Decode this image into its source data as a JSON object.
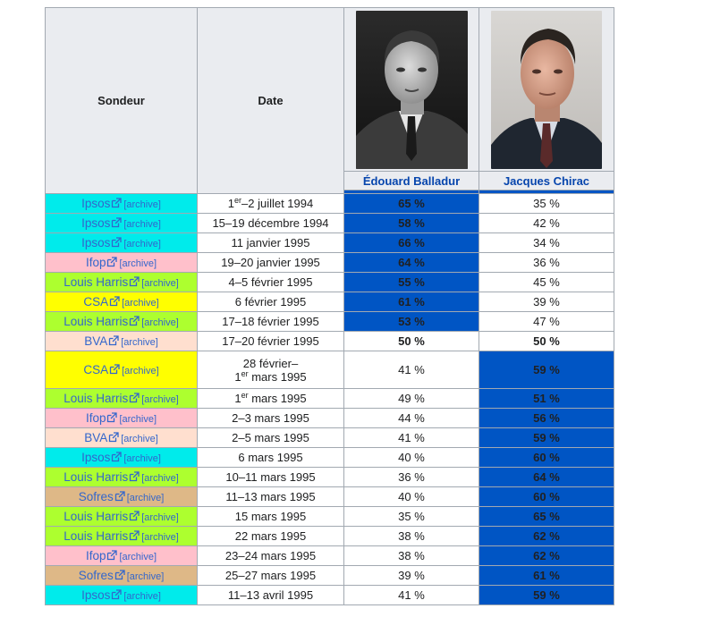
{
  "headers": {
    "pollster": "Sondeur",
    "date": "Date",
    "candidates": [
      {
        "name": "Édouard Balladur",
        "photo_icon": "balladur-portrait",
        "color": "#0055c4"
      },
      {
        "name": "Jacques Chirac",
        "photo_icon": "chirac-portrait",
        "color": "#0055c4"
      }
    ]
  },
  "archive_label": "[archive]",
  "colors": {
    "lead": "#0055c4",
    "Ipsos": "#00ebeb",
    "Ifop": "#ffc0cb",
    "Louis Harris": "#adff2f",
    "CSA": "#ffff00",
    "BVA": "#ffdfcf",
    "Sofres": "#deb887"
  },
  "rows": [
    {
      "pollster": "Ipsos",
      "date_pre": "1",
      "date_sup": "er",
      "date_post": "–2 juillet 1994",
      "date_line2": "",
      "balladur": "65 %",
      "chirac": "35 %",
      "leader": "balladur"
    },
    {
      "pollster": "Ipsos",
      "date_pre": "15–19 décembre 1994",
      "date_sup": "",
      "date_post": "",
      "date_line2": "",
      "balladur": "58 %",
      "chirac": "42 %",
      "leader": "balladur"
    },
    {
      "pollster": "Ipsos",
      "date_pre": "11 janvier 1995",
      "date_sup": "",
      "date_post": "",
      "date_line2": "",
      "balladur": "66 %",
      "chirac": "34 %",
      "leader": "balladur"
    },
    {
      "pollster": "Ifop",
      "date_pre": "19–20 janvier 1995",
      "date_sup": "",
      "date_post": "",
      "date_line2": "",
      "balladur": "64 %",
      "chirac": "36 %",
      "leader": "balladur"
    },
    {
      "pollster": "Louis Harris",
      "date_pre": "4–5 février 1995",
      "date_sup": "",
      "date_post": "",
      "date_line2": "",
      "balladur": "55 %",
      "chirac": "45 %",
      "leader": "balladur"
    },
    {
      "pollster": "CSA",
      "date_pre": "6 février 1995",
      "date_sup": "",
      "date_post": "",
      "date_line2": "",
      "balladur": "61 %",
      "chirac": "39 %",
      "leader": "balladur"
    },
    {
      "pollster": "Louis Harris",
      "date_pre": "17–18 février 1995",
      "date_sup": "",
      "date_post": "",
      "date_line2": "",
      "balladur": "53 %",
      "chirac": "47 %",
      "leader": "balladur"
    },
    {
      "pollster": "BVA",
      "date_pre": "17–20 février 1995",
      "date_sup": "",
      "date_post": "",
      "date_line2": "",
      "balladur": "50 %",
      "chirac": "50 %",
      "leader": "tie"
    },
    {
      "pollster": "CSA",
      "date_pre": "28 février–",
      "date_sup": "",
      "date_post": "",
      "date_line2": "mars 1995",
      "date_line2_pre": "1",
      "date_line2_sup": "er",
      "balladur": "41 %",
      "chirac": "59 %",
      "leader": "chirac"
    },
    {
      "pollster": "Louis Harris",
      "date_pre": "1",
      "date_sup": "er",
      "date_post": " mars 1995",
      "date_line2": "",
      "balladur": "49 %",
      "chirac": "51 %",
      "leader": "chirac"
    },
    {
      "pollster": "Ifop",
      "date_pre": "2–3 mars 1995",
      "date_sup": "",
      "date_post": "",
      "date_line2": "",
      "balladur": "44 %",
      "chirac": "56 %",
      "leader": "chirac"
    },
    {
      "pollster": "BVA",
      "date_pre": "2–5 mars 1995",
      "date_sup": "",
      "date_post": "",
      "date_line2": "",
      "balladur": "41 %",
      "chirac": "59 %",
      "leader": "chirac"
    },
    {
      "pollster": "Ipsos",
      "date_pre": "6 mars 1995",
      "date_sup": "",
      "date_post": "",
      "date_line2": "",
      "balladur": "40 %",
      "chirac": "60 %",
      "leader": "chirac"
    },
    {
      "pollster": "Louis Harris",
      "date_pre": "10–11 mars 1995",
      "date_sup": "",
      "date_post": "",
      "date_line2": "",
      "balladur": "36 %",
      "chirac": "64 %",
      "leader": "chirac"
    },
    {
      "pollster": "Sofres",
      "date_pre": "11–13 mars 1995",
      "date_sup": "",
      "date_post": "",
      "date_line2": "",
      "balladur": "40 %",
      "chirac": "60 %",
      "leader": "chirac"
    },
    {
      "pollster": "Louis Harris",
      "date_pre": "15 mars 1995",
      "date_sup": "",
      "date_post": "",
      "date_line2": "",
      "balladur": "35 %",
      "chirac": "65 %",
      "leader": "chirac"
    },
    {
      "pollster": "Louis Harris",
      "date_pre": "22 mars 1995",
      "date_sup": "",
      "date_post": "",
      "date_line2": "",
      "balladur": "38 %",
      "chirac": "62 %",
      "leader": "chirac"
    },
    {
      "pollster": "Ifop",
      "date_pre": "23–24 mars 1995",
      "date_sup": "",
      "date_post": "",
      "date_line2": "",
      "balladur": "38 %",
      "chirac": "62 %",
      "leader": "chirac"
    },
    {
      "pollster": "Sofres",
      "date_pre": "25–27 mars 1995",
      "date_sup": "",
      "date_post": "",
      "date_line2": "",
      "balladur": "39 %",
      "chirac": "61 %",
      "leader": "chirac"
    },
    {
      "pollster": "Ipsos",
      "date_pre": "11–13 avril 1995",
      "date_sup": "",
      "date_post": "",
      "date_line2": "",
      "balladur": "41 %",
      "chirac": "59 %",
      "leader": "chirac"
    }
  ]
}
